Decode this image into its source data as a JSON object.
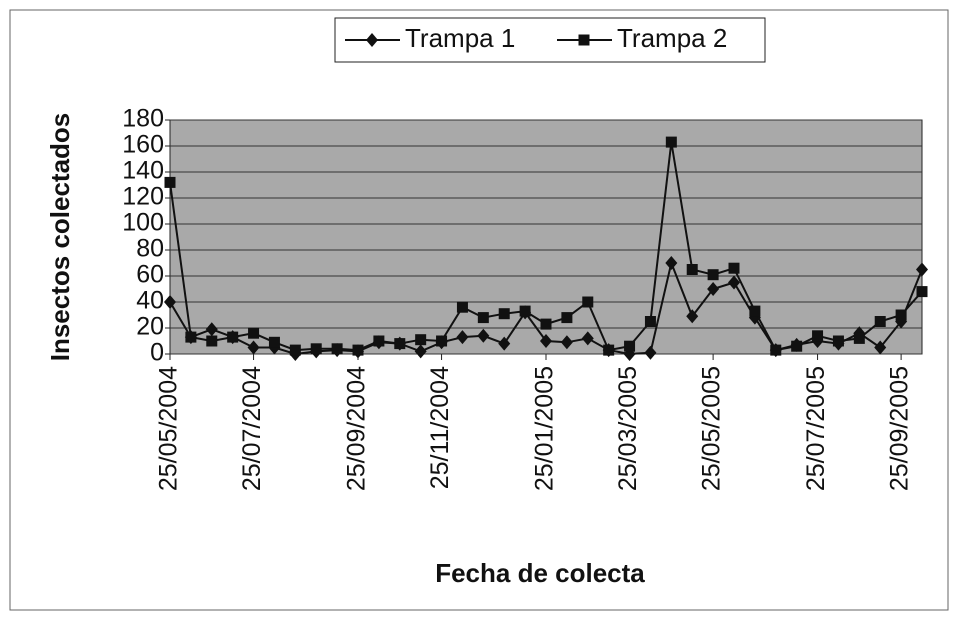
{
  "chart_data": {
    "type": "line",
    "xlabel": "Fecha de colecta",
    "ylabel": "Insectos colectados",
    "categories": [
      "25/05/2004",
      null,
      null,
      null,
      "25/07/2004",
      null,
      null,
      null,
      null,
      "25/09/2004",
      null,
      null,
      null,
      "25/11/2004",
      null,
      null,
      null,
      null,
      "25/01/2005",
      null,
      null,
      null,
      "25/03/2005",
      null,
      null,
      null,
      "25/05/2005",
      null,
      null,
      null,
      null,
      "25/07/2005",
      null,
      null,
      null,
      "25/09/2005",
      null
    ],
    "series": [
      {
        "name": "Trampa 1",
        "color": "#111111",
        "marker": "diamond",
        "values": [
          40,
          13,
          19,
          13,
          5,
          5,
          0,
          2,
          3,
          2,
          9,
          8,
          2,
          9,
          13,
          14,
          8,
          32,
          10,
          9,
          12,
          3,
          0,
          1,
          70,
          29,
          50,
          55,
          28,
          3,
          7,
          10,
          8,
          16,
          5,
          25,
          65
        ]
      },
      {
        "name": "Trampa 2",
        "color": "#111111",
        "marker": "square",
        "values": [
          132,
          13,
          10,
          13,
          16,
          9,
          3,
          4,
          4,
          3,
          10,
          8,
          11,
          10,
          36,
          28,
          31,
          33,
          23,
          28,
          40,
          3,
          6,
          25,
          163,
          65,
          61,
          66,
          33,
          3,
          6,
          14,
          10,
          12,
          25,
          30,
          48
        ]
      }
    ],
    "ylim": [
      0,
      180
    ],
    "yticks": [
      0,
      20,
      40,
      60,
      80,
      100,
      120,
      140,
      160,
      180
    ],
    "grid": true,
    "legend": "top"
  }
}
